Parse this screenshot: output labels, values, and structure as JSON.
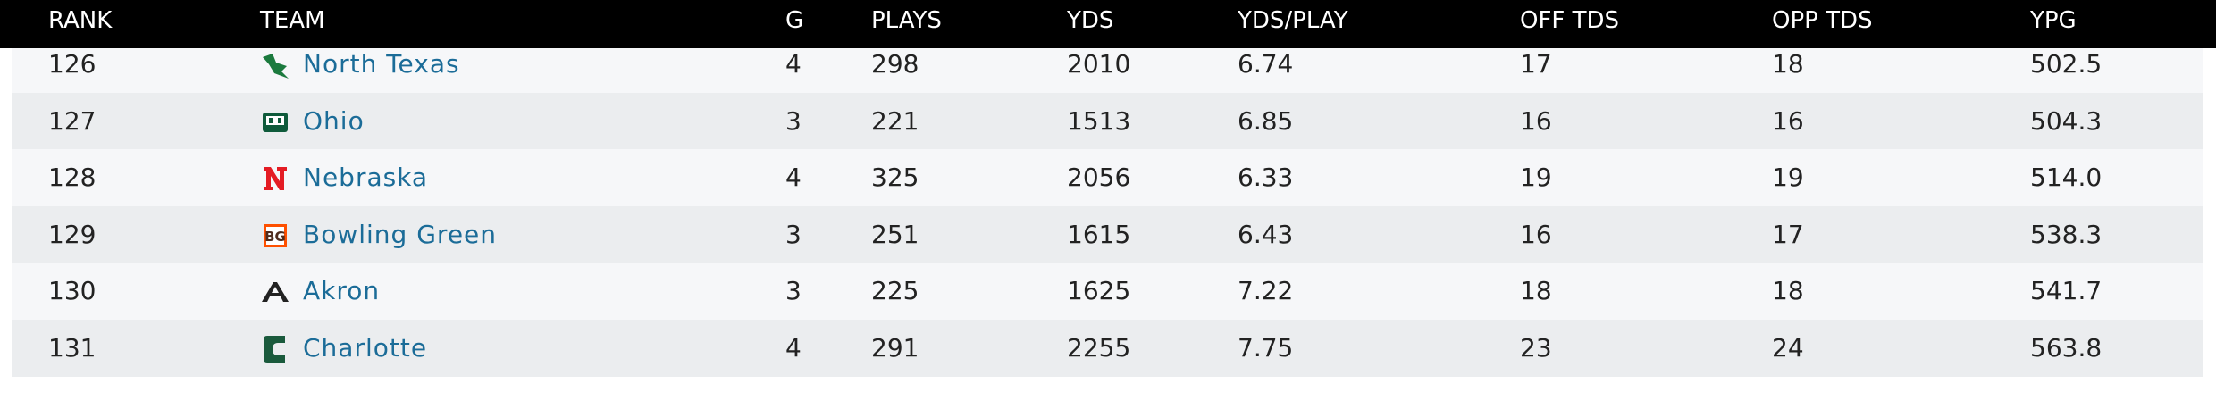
{
  "table": {
    "columns": [
      "RANK",
      "TEAM",
      "G",
      "PLAYS",
      "YDS",
      "YDS/PLAY",
      "OFF TDS",
      "OPP TDS",
      "YPG"
    ],
    "rows": [
      [
        "126",
        "North Texas",
        "4",
        "298",
        "2010",
        "6.74",
        "17",
        "18",
        "502.5"
      ],
      [
        "127",
        "Ohio",
        "3",
        "221",
        "1513",
        "6.85",
        "16",
        "16",
        "504.3"
      ],
      [
        "128",
        "Nebraska",
        "4",
        "325",
        "2056",
        "6.33",
        "19",
        "19",
        "514.0"
      ],
      [
        "129",
        "Bowling Green",
        "3",
        "251",
        "1615",
        "6.43",
        "16",
        "17",
        "538.3"
      ],
      [
        "130",
        "Akron",
        "3",
        "225",
        "1625",
        "7.22",
        "18",
        "18",
        "541.7"
      ],
      [
        "131",
        "Charlotte",
        "4",
        "291",
        "2255",
        "7.75",
        "23",
        "24",
        "563.8"
      ]
    ]
  }
}
